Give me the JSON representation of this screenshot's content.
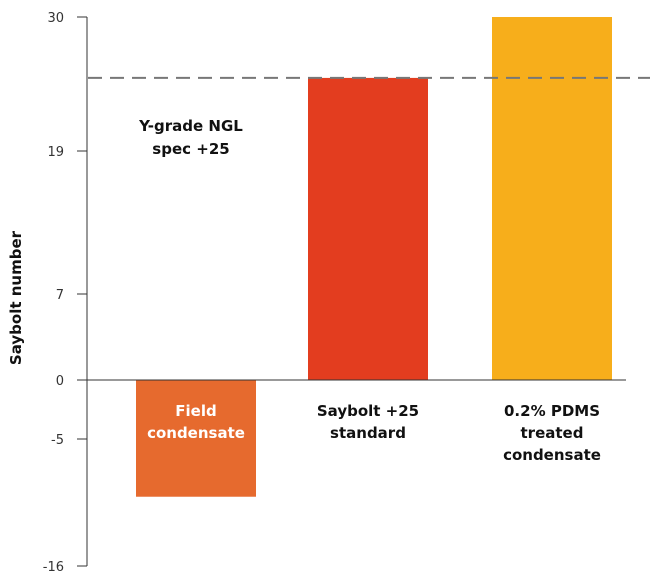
{
  "chart_data": {
    "type": "bar",
    "title": "",
    "xlabel": "",
    "ylabel": "Saybolt number",
    "ylim": [
      -16,
      30
    ],
    "yticks": [
      30,
      19,
      7,
      0,
      -5,
      -16
    ],
    "categories": [
      "Field condensate",
      "Saybolt +25 standard",
      "0.2% PDMS treated condensate"
    ],
    "category_label_lines": [
      [
        "Field",
        "condensate"
      ],
      [
        "Saybolt +25",
        "standard"
      ],
      [
        "0.2% PDMS",
        "treated",
        "condensate"
      ]
    ],
    "values": [
      -10,
      25,
      30
    ],
    "colors": [
      "#E66A2E",
      "#E33D1F",
      "#F7AE1B"
    ],
    "label_colors": [
      "#FFFFFF",
      "#111111",
      "#111111"
    ],
    "reference_line": {
      "value": 25,
      "style": "dashed",
      "color": "#777777",
      "label_lines": [
        "Y-grade NGL",
        "spec +25"
      ]
    },
    "grid": false,
    "legend": "none"
  }
}
